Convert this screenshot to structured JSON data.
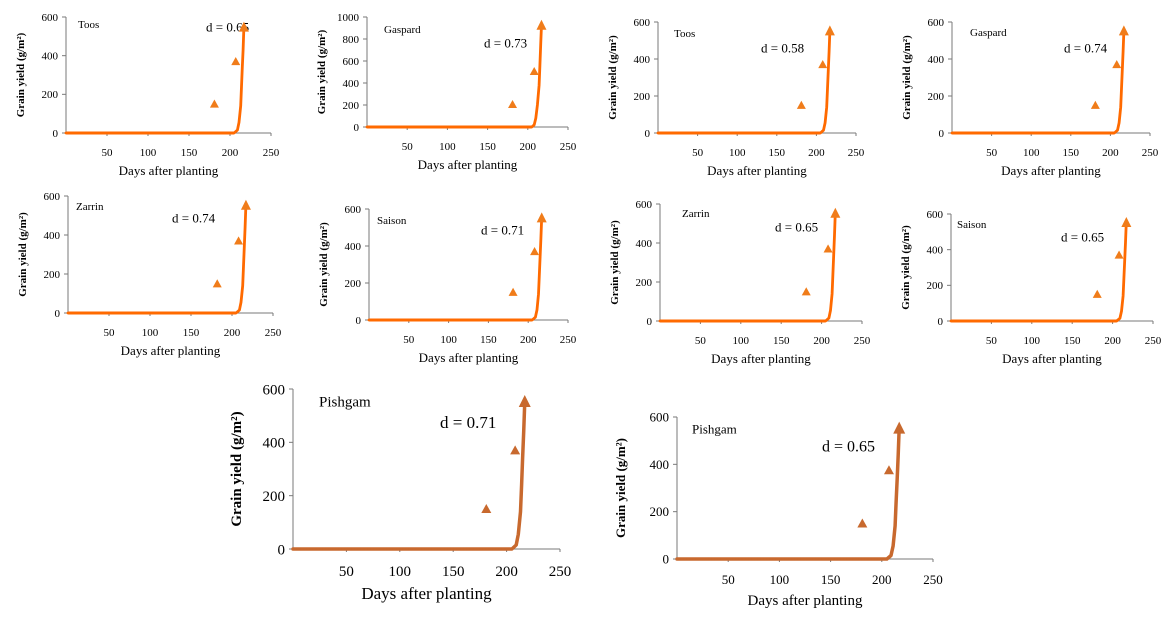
{
  "chart_data": [
    {
      "type": "line",
      "cultivar": "Toos",
      "d_label": "d = 0.65",
      "xlabel": "Days after planting",
      "ylabel": "Grain yield (g/m²)",
      "xlim": [
        0,
        250
      ],
      "ylim": [
        0,
        600
      ],
      "xticks": [
        "50",
        "100",
        "150",
        "200",
        "250"
      ],
      "yticks": [
        "0",
        "200",
        "400",
        "600"
      ],
      "observed": {
        "x": [
          181,
          207
        ],
        "y": [
          150,
          370
        ]
      },
      "simulated": {
        "x": [
          0,
          205,
          209,
          211,
          213,
          214,
          215,
          216,
          217
        ],
        "y": [
          0,
          0,
          15,
          55,
          140,
          240,
          340,
          430,
          550
        ]
      }
    },
    {
      "type": "line",
      "cultivar": "Gaspard",
      "d_label": "d = 0.73",
      "xlabel": "Days after planting",
      "ylabel": "Grain yield (g/m²)",
      "xlim": [
        0,
        250
      ],
      "ylim": [
        0,
        1000
      ],
      "xticks": [
        "50",
        "100",
        "150",
        "200",
        "250"
      ],
      "yticks": [
        "0",
        "200",
        "400",
        "600",
        "800",
        "1000"
      ],
      "observed": {
        "x": [
          181,
          208
        ],
        "y": [
          205,
          505
        ]
      },
      "simulated": {
        "x": [
          0,
          205,
          208,
          210,
          212,
          214,
          215,
          216,
          217
        ],
        "y": [
          0,
          0,
          20,
          80,
          200,
          380,
          560,
          750,
          930
        ]
      }
    },
    {
      "type": "line",
      "cultivar": "Toos",
      "d_label": "d = 0.58",
      "xlabel": "Days after planting",
      "ylabel": "Grain yield (g/m²)",
      "xlim": [
        0,
        250
      ],
      "ylim": [
        0,
        600
      ],
      "xticks": [
        "50",
        "100",
        "150",
        "200",
        "250"
      ],
      "yticks": [
        "0",
        "200",
        "400",
        "600"
      ],
      "observed": {
        "x": [
          181,
          208
        ],
        "y": [
          150,
          370
        ]
      },
      "simulated": {
        "x": [
          0,
          205,
          209,
          211,
          213,
          214,
          215,
          216,
          217
        ],
        "y": [
          0,
          0,
          15,
          55,
          140,
          240,
          340,
          440,
          555
        ]
      }
    },
    {
      "type": "line",
      "cultivar": "Gaspard",
      "d_label": "d = 0.74",
      "xlabel": "Days after planting",
      "ylabel": "Grain yield (g/m²)",
      "xlim": [
        0,
        250
      ],
      "ylim": [
        0,
        600
      ],
      "xticks": [
        "50",
        "100",
        "150",
        "200",
        "250"
      ],
      "yticks": [
        "0",
        "200",
        "400",
        "600"
      ],
      "observed": {
        "x": [
          181,
          208
        ],
        "y": [
          150,
          370
        ]
      },
      "simulated": {
        "x": [
          0,
          205,
          209,
          211,
          213,
          214,
          215,
          216,
          217
        ],
        "y": [
          0,
          0,
          15,
          55,
          140,
          240,
          340,
          440,
          555
        ]
      }
    },
    {
      "type": "line",
      "cultivar": "Zarrin",
      "d_label": "d = 0.74",
      "xlabel": "Days after planting",
      "ylabel": "Grain yield (g/m²)",
      "xlim": [
        0,
        250
      ],
      "ylim": [
        0,
        600
      ],
      "xticks": [
        "50",
        "100",
        "150",
        "200",
        "250"
      ],
      "yticks": [
        "0",
        "200",
        "400",
        "600"
      ],
      "observed": {
        "x": [
          182,
          208
        ],
        "y": [
          150,
          370
        ]
      },
      "simulated": {
        "x": [
          0,
          205,
          209,
          211,
          213,
          214,
          215,
          216,
          217
        ],
        "y": [
          0,
          0,
          15,
          55,
          140,
          240,
          340,
          440,
          555
        ]
      }
    },
    {
      "type": "line",
      "cultivar": "Saison",
      "d_label": "d = 0.71",
      "xlabel": "Days after planting",
      "ylabel": "Grain yield (g/m²)",
      "xlim": [
        0,
        250
      ],
      "ylim": [
        0,
        600
      ],
      "xticks": [
        "50",
        "100",
        "150",
        "200",
        "250"
      ],
      "yticks": [
        "0",
        "200",
        "400",
        "600"
      ],
      "observed": {
        "x": [
          181,
          208
        ],
        "y": [
          150,
          370
        ]
      },
      "simulated": {
        "x": [
          0,
          205,
          209,
          211,
          213,
          214,
          215,
          216,
          217
        ],
        "y": [
          0,
          0,
          15,
          55,
          140,
          240,
          340,
          440,
          555
        ]
      }
    },
    {
      "type": "line",
      "cultivar": "Zarrin",
      "d_label": "d = 0.65",
      "xlabel": "Days after planting",
      "ylabel": "Grain yield (g/m²)",
      "xlim": [
        0,
        250
      ],
      "ylim": [
        0,
        600
      ],
      "xticks": [
        "50",
        "100",
        "150",
        "200",
        "250"
      ],
      "yticks": [
        "0",
        "200",
        "400",
        "600"
      ],
      "observed": {
        "x": [
          181,
          208
        ],
        "y": [
          150,
          370
        ]
      },
      "simulated": {
        "x": [
          0,
          205,
          209,
          211,
          213,
          214,
          215,
          216,
          217
        ],
        "y": [
          0,
          0,
          15,
          55,
          140,
          240,
          340,
          440,
          555
        ]
      }
    },
    {
      "type": "line",
      "cultivar": "Saison",
      "d_label": "d = 0.65",
      "xlabel": "Days after planting",
      "ylabel": "Grain yield (g/m²)",
      "xlim": [
        0,
        250
      ],
      "ylim": [
        0,
        600
      ],
      "xticks": [
        "50",
        "100",
        "150",
        "200",
        "250"
      ],
      "yticks": [
        "0",
        "200",
        "400",
        "600"
      ],
      "observed": {
        "x": [
          181,
          208
        ],
        "y": [
          150,
          370
        ]
      },
      "simulated": {
        "x": [
          0,
          205,
          209,
          211,
          213,
          214,
          215,
          216,
          217
        ],
        "y": [
          0,
          0,
          15,
          55,
          140,
          240,
          340,
          440,
          555
        ]
      }
    },
    {
      "type": "line",
      "cultivar": "Pishgam",
      "d_label": "d = 0.71",
      "xlabel": "Days after planting",
      "ylabel": "Grain yield (g/m²)",
      "xlim": [
        0,
        250
      ],
      "ylim": [
        0,
        600
      ],
      "xticks": [
        "50",
        "100",
        "150",
        "200",
        "250"
      ],
      "yticks": [
        "0",
        "200",
        "400",
        "600"
      ],
      "observed": {
        "x": [
          181,
          208
        ],
        "y": [
          150,
          370
        ]
      },
      "simulated": {
        "x": [
          0,
          205,
          209,
          211,
          213,
          214,
          215,
          216,
          217
        ],
        "y": [
          0,
          0,
          15,
          55,
          140,
          240,
          340,
          440,
          555
        ]
      }
    },
    {
      "type": "line",
      "cultivar": "Pishgam",
      "d_label": "d = 0.65",
      "xlabel": "Days after planting",
      "ylabel": "Grain yield (g/m²)",
      "xlim": [
        0,
        250
      ],
      "ylim": [
        0,
        600
      ],
      "xticks": [
        "50",
        "100",
        "150",
        "200",
        "250"
      ],
      "yticks": [
        "0",
        "200",
        "400",
        "600"
      ],
      "observed": {
        "x": [
          181,
          207
        ],
        "y": [
          150,
          375
        ]
      },
      "simulated": {
        "x": [
          0,
          205,
          209,
          211,
          213,
          214,
          215,
          216,
          217
        ],
        "y": [
          0,
          0,
          15,
          55,
          140,
          240,
          340,
          440,
          555
        ]
      }
    }
  ],
  "colors": {
    "simulated_line": "#ff6a00",
    "simulated_line_large": "#c8692e",
    "observed_marker": "#f07c1a"
  }
}
